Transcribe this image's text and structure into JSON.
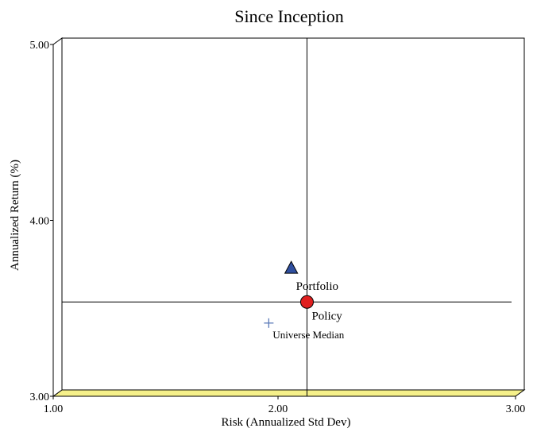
{
  "chart_data": {
    "type": "scatter",
    "title": "Since Inception",
    "xlabel": "Risk (Annualized Std Dev)",
    "ylabel": "Annualized Return (%)",
    "xlim": [
      1.0,
      3.0
    ],
    "ylim": [
      3.0,
      5.0
    ],
    "x_ticks": [
      "1.00",
      "2.00",
      "3.00"
    ],
    "y_ticks": [
      "3.00",
      "4.00",
      "5.00"
    ],
    "crosshair": {
      "x": 2.09,
      "y": 3.5
    },
    "points": [
      {
        "name": "Portfolio",
        "x": 2.02,
        "y": 3.69,
        "marker": "triangle",
        "color": "#2F4F9F"
      },
      {
        "name": "Policy",
        "x": 2.09,
        "y": 3.5,
        "marker": "circle",
        "color": "#E02020"
      },
      {
        "name": "Universe Median",
        "x": 1.92,
        "y": 3.38,
        "marker": "plus",
        "color": "#5A7AB8"
      }
    ],
    "floor_color": "#F5F08A",
    "grid": false
  }
}
